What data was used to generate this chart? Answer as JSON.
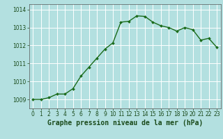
{
  "x": [
    0,
    1,
    2,
    3,
    4,
    5,
    6,
    7,
    8,
    9,
    10,
    11,
    12,
    13,
    14,
    15,
    16,
    17,
    18,
    19,
    20,
    21,
    22,
    23
  ],
  "y": [
    1009.0,
    1009.0,
    1009.1,
    1009.3,
    1009.3,
    1009.6,
    1010.3,
    1010.8,
    1011.3,
    1011.8,
    1012.15,
    1013.3,
    1013.35,
    1013.65,
    1013.62,
    1013.3,
    1013.1,
    1013.0,
    1012.8,
    1013.0,
    1012.88,
    1012.3,
    1012.4,
    1011.9
  ],
  "line_color": "#1a6b1a",
  "marker": "D",
  "marker_size": 2.0,
  "line_width": 1.0,
  "bg_color": "#b3e0e0",
  "grid_color": "#ffffff",
  "xlabel": "Graphe pression niveau de la mer (hPa)",
  "xlabel_fontsize": 7.0,
  "xlabel_color": "#1a4a1a",
  "yticks": [
    1009,
    1010,
    1011,
    1012,
    1013,
    1014
  ],
  "xticks": [
    0,
    1,
    2,
    3,
    4,
    5,
    6,
    7,
    8,
    9,
    10,
    11,
    12,
    13,
    14,
    15,
    16,
    17,
    18,
    19,
    20,
    21,
    22,
    23
  ],
  "ylim": [
    1008.5,
    1014.3
  ],
  "xlim": [
    -0.5,
    23.5
  ],
  "tick_fontsize": 5.5,
  "tick_color": "#1a4a1a"
}
